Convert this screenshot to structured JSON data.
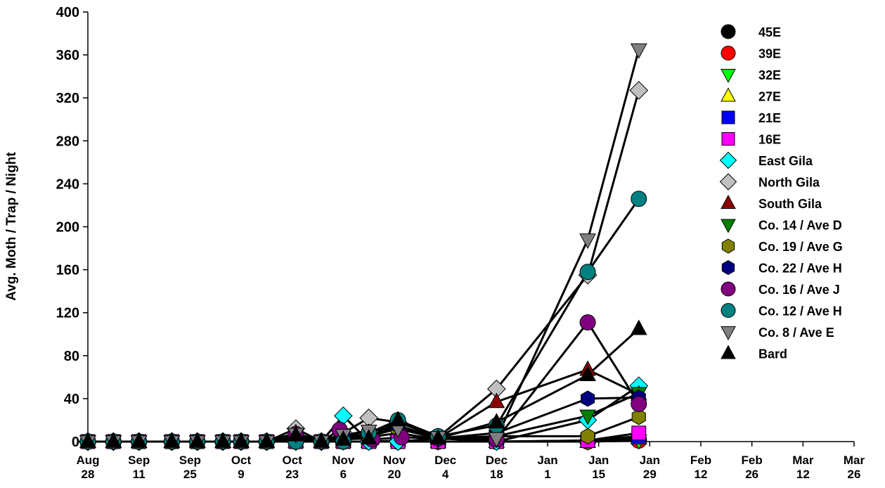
{
  "chart_data": {
    "type": "line",
    "title": "",
    "ylabel": "Avg. Moth / Trap / Night",
    "xlabel": "",
    "ylim": [
      0,
      400
    ],
    "yticks": [
      0,
      40,
      80,
      120,
      160,
      200,
      240,
      280,
      320,
      360,
      400
    ],
    "xlim": [
      "2012-08-28",
      "2013-03-26"
    ],
    "xticks": [
      {
        "date": "2012-08-28",
        "line1": "Aug",
        "line2": "28"
      },
      {
        "date": "2012-09-11",
        "line1": "Sep",
        "line2": "11"
      },
      {
        "date": "2012-09-25",
        "line1": "Sep",
        "line2": "25"
      },
      {
        "date": "2012-10-09",
        "line1": "Oct",
        "line2": "9"
      },
      {
        "date": "2012-10-23",
        "line1": "Oct",
        "line2": "23"
      },
      {
        "date": "2012-11-06",
        "line1": "Nov",
        "line2": "6"
      },
      {
        "date": "2012-11-20",
        "line1": "Nov",
        "line2": "20"
      },
      {
        "date": "2012-12-04",
        "line1": "Dec",
        "line2": "4"
      },
      {
        "date": "2012-12-18",
        "line1": "Dec",
        "line2": "18"
      },
      {
        "date": "2013-01-01",
        "line1": "Jan",
        "line2": "1"
      },
      {
        "date": "2013-01-15",
        "line1": "Jan",
        "line2": "15"
      },
      {
        "date": "2013-01-29",
        "line1": "Jan",
        "line2": "29"
      },
      {
        "date": "2013-02-12",
        "line1": "Feb",
        "line2": "12"
      },
      {
        "date": "2013-02-26",
        "line1": "Feb",
        "line2": "26"
      },
      {
        "date": "2013-03-12",
        "line1": "Mar",
        "line2": "12"
      },
      {
        "date": "2013-03-26",
        "line1": "Mar",
        "line2": "26"
      }
    ],
    "x": [
      "2012-08-28",
      "2012-09-04",
      "2012-09-11",
      "2012-09-20",
      "2012-09-27",
      "2012-10-04",
      "2012-10-09",
      "2012-10-16",
      "2012-10-24",
      "2012-10-31",
      "2012-11-05",
      "2012-11-06",
      "2012-11-13",
      "2012-11-14",
      "2012-11-21",
      "2012-11-22",
      "2012-12-02",
      "2012-12-18",
      "2012-12-19",
      "2013-01-12",
      "2013-01-26"
    ],
    "grid": false,
    "legend_position": "right",
    "series": [
      {
        "name": "45E",
        "marker": "circle",
        "color": "#000000",
        "values": [
          0,
          0,
          0,
          0,
          0,
          0,
          0,
          0,
          0,
          0,
          null,
          0,
          0,
          null,
          0,
          null,
          0,
          0,
          null,
          0,
          2
        ]
      },
      {
        "name": "39E",
        "marker": "circle",
        "color": "#ff0000",
        "values": [
          0,
          0,
          0,
          0,
          0,
          0,
          0,
          0,
          0,
          0,
          null,
          0,
          0,
          null,
          0,
          null,
          0,
          0,
          null,
          0,
          1
        ]
      },
      {
        "name": "32E",
        "marker": "triangle-down",
        "color": "#00ff00",
        "values": [
          0,
          0,
          0,
          0,
          0,
          0,
          0,
          0,
          0,
          0,
          null,
          0,
          0,
          null,
          0,
          null,
          0,
          0,
          null,
          0,
          1
        ]
      },
      {
        "name": "27E",
        "marker": "triangle-up",
        "color": "#ffff00",
        "values": [
          0,
          0,
          0,
          0,
          0,
          0,
          0,
          0,
          0,
          0,
          null,
          0,
          0,
          null,
          1,
          null,
          0,
          0,
          null,
          0,
          3
        ]
      },
      {
        "name": "21E",
        "marker": "square",
        "color": "#0000ff",
        "values": [
          0,
          0,
          0,
          0,
          0,
          0,
          0,
          0,
          0,
          0,
          null,
          0,
          0,
          null,
          0,
          null,
          0,
          0,
          null,
          1,
          5
        ]
      },
      {
        "name": "16E",
        "marker": "square",
        "color": "#ff00ff",
        "values": [
          0,
          0,
          0,
          0,
          0,
          0,
          0,
          0,
          0,
          0,
          null,
          0,
          0,
          null,
          0,
          null,
          0,
          0,
          null,
          1,
          8
        ]
      },
      {
        "name": "East Gila",
        "marker": "diamond",
        "color": "#00ffff",
        "values": [
          0,
          0,
          0,
          0,
          0,
          0,
          0,
          0,
          0,
          0,
          null,
          24,
          0,
          null,
          0,
          null,
          3,
          0,
          null,
          20,
          52
        ]
      },
      {
        "name": "North Gila",
        "marker": "diamond",
        "color": "#c0c0c0",
        "values": [
          0,
          0,
          0,
          0,
          0,
          0,
          0,
          0,
          12,
          0,
          null,
          8,
          22,
          null,
          18,
          null,
          4,
          49,
          null,
          155,
          327
        ]
      },
      {
        "name": "South Gila",
        "marker": "triangle-up",
        "color": "#8b0000",
        "values": [
          0,
          0,
          0,
          0,
          0,
          0,
          0,
          0,
          8,
          0,
          null,
          5,
          6,
          null,
          12,
          null,
          3,
          37,
          null,
          67,
          44
        ]
      },
      {
        "name": "Co. 14 / Ave D",
        "marker": "triangle-down",
        "color": "#008000",
        "values": [
          0,
          0,
          0,
          0,
          0,
          0,
          0,
          0,
          3,
          0,
          null,
          2,
          4,
          null,
          8,
          null,
          2,
          5,
          null,
          24,
          45
        ]
      },
      {
        "name": "Co. 19 / Ave G",
        "marker": "hexagon",
        "color": "#808000",
        "values": [
          0,
          0,
          0,
          0,
          0,
          0,
          0,
          0,
          3,
          0,
          null,
          3,
          5,
          null,
          12,
          null,
          3,
          5,
          null,
          5,
          23
        ]
      },
      {
        "name": "Co. 22 / Ave H",
        "marker": "hexagon",
        "color": "#000080",
        "values": [
          0,
          0,
          0,
          0,
          0,
          0,
          0,
          0,
          5,
          0,
          null,
          6,
          9,
          null,
          15,
          null,
          3,
          8,
          null,
          40,
          41
        ]
      },
      {
        "name": "Co. 16 / Ave J",
        "marker": "circle",
        "color": "#800080",
        "values": [
          0,
          0,
          0,
          0,
          0,
          0,
          0,
          0,
          7,
          0,
          11,
          null,
          null,
          2,
          null,
          4,
          3,
          2,
          null,
          111,
          35
        ]
      },
      {
        "name": "Co. 12 / Ave H",
        "marker": "circle",
        "color": "#008080",
        "values": [
          0,
          0,
          0,
          0,
          0,
          0,
          0,
          0,
          0,
          0,
          null,
          0,
          8,
          null,
          20,
          null,
          5,
          15,
          null,
          158,
          226
        ]
      },
      {
        "name": "Co. 8 / Ave E",
        "marker": "triangle-down",
        "color": "#808080",
        "values": [
          0,
          0,
          0,
          0,
          0,
          0,
          0,
          0,
          7,
          0,
          null,
          6,
          10,
          null,
          12,
          null,
          4,
          3,
          null,
          188,
          365
        ]
      },
      {
        "name": "Bard",
        "marker": "triangle-up",
        "color": "#000000",
        "values": [
          0,
          0,
          0,
          0,
          0,
          0,
          0,
          0,
          6,
          0,
          null,
          2,
          3,
          null,
          20,
          null,
          3,
          18,
          null,
          62,
          105
        ]
      }
    ]
  }
}
